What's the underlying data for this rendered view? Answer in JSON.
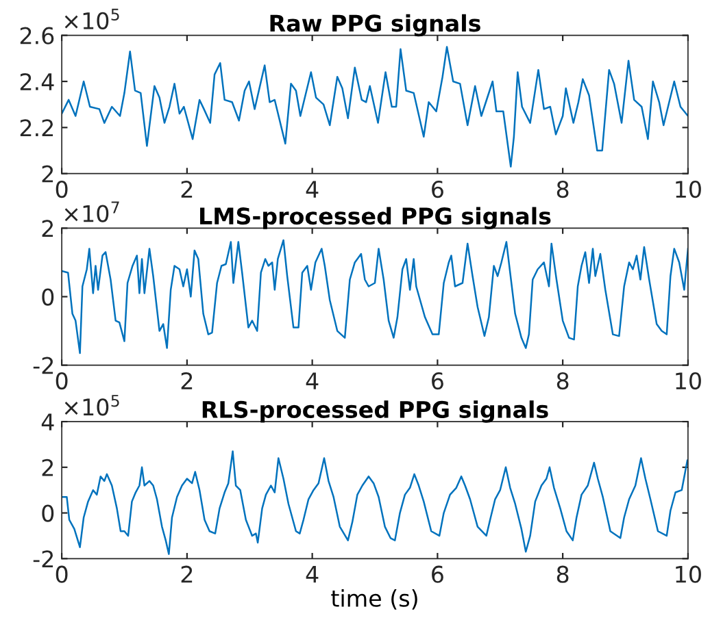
{
  "chart_data": [
    {
      "type": "line",
      "title": "Raw PPG signals",
      "annotations": [
        "×10$^{5}$"
      ],
      "xlim": [
        0,
        10
      ],
      "ylim": [
        2,
        2.6
      ],
      "xticks": [
        0,
        2,
        4,
        6,
        8,
        10
      ],
      "yticks": [
        2,
        2.2,
        2.4,
        2.6
      ],
      "grid": false,
      "legend": false,
      "series": [
        {
          "color": "#0072bd",
          "x": [
            0,
            0.11,
            0.22,
            0.35,
            0.45,
            0.6,
            0.68,
            0.8,
            0.93,
            1.0,
            1.09,
            1.17,
            1.26,
            1.36,
            1.48,
            1.56,
            1.64,
            1.72,
            1.8,
            1.88,
            1.95,
            2.09,
            2.2,
            2.27,
            2.37,
            2.44,
            2.53,
            2.6,
            2.72,
            2.83,
            2.92,
            2.99,
            3.08,
            3.24,
            3.32,
            3.4,
            3.57,
            3.66,
            3.74,
            3.81,
            3.98,
            4.06,
            4.18,
            4.28,
            4.4,
            4.48,
            4.57,
            4.68,
            4.79,
            4.86,
            4.92,
            5.05,
            5.17,
            5.27,
            5.34,
            5.41,
            5.5,
            5.62,
            5.78,
            5.86,
            5.98,
            6.08,
            6.15,
            6.25,
            6.36,
            6.48,
            6.6,
            6.7,
            6.88,
            6.94,
            7.05,
            7.17,
            7.22,
            7.28,
            7.35,
            7.48,
            7.61,
            7.7,
            7.8,
            7.89,
            8.0,
            8.05,
            8.17,
            8.25,
            8.32,
            8.42,
            8.55,
            8.63,
            8.74,
            8.82,
            8.94,
            9.05,
            9.14,
            9.26,
            9.36,
            9.44,
            9.54,
            9.61,
            9.78,
            9.88,
            10
          ],
          "values": [
            2.26,
            2.32,
            2.25,
            2.4,
            2.29,
            2.28,
            2.22,
            2.29,
            2.25,
            2.35,
            2.53,
            2.36,
            2.35,
            2.12,
            2.38,
            2.33,
            2.22,
            2.29,
            2.39,
            2.26,
            2.29,
            2.15,
            2.32,
            2.28,
            2.22,
            2.43,
            2.48,
            2.32,
            2.31,
            2.23,
            2.36,
            2.4,
            2.28,
            2.47,
            2.31,
            2.32,
            2.13,
            2.39,
            2.36,
            2.25,
            2.44,
            2.33,
            2.3,
            2.21,
            2.42,
            2.37,
            2.24,
            2.46,
            2.32,
            2.31,
            2.38,
            2.22,
            2.44,
            2.29,
            2.29,
            2.54,
            2.36,
            2.35,
            2.16,
            2.31,
            2.27,
            2.42,
            2.55,
            2.4,
            2.39,
            2.21,
            2.38,
            2.25,
            2.4,
            2.27,
            2.27,
            2.03,
            2.16,
            2.44,
            2.29,
            2.22,
            2.45,
            2.28,
            2.29,
            2.17,
            2.25,
            2.37,
            2.22,
            2.31,
            2.41,
            2.34,
            2.1,
            2.1,
            2.45,
            2.39,
            2.22,
            2.49,
            2.32,
            2.29,
            2.15,
            2.4,
            2.31,
            2.21,
            2.4,
            2.29,
            2.25
          ]
        }
      ]
    },
    {
      "type": "line",
      "title": "LMS-processed PPG signals",
      "annotations": [
        "×10$^{7}$"
      ],
      "xlim": [
        0,
        10
      ],
      "ylim": [
        -2,
        2
      ],
      "xticks": [
        0,
        2,
        4,
        6,
        8,
        10
      ],
      "yticks": [
        -2,
        0,
        2
      ],
      "grid": false,
      "legend": false,
      "series": [
        {
          "color": "#0072bd",
          "x": [
            0,
            0.1,
            0.17,
            0.22,
            0.29,
            0.33,
            0.4,
            0.44,
            0.5,
            0.54,
            0.58,
            0.65,
            0.7,
            0.78,
            0.86,
            0.92,
            1.0,
            1.05,
            1.13,
            1.2,
            1.24,
            1.28,
            1.32,
            1.4,
            1.46,
            1.56,
            1.62,
            1.68,
            1.74,
            1.8,
            1.88,
            1.94,
            2.0,
            2.06,
            2.12,
            2.18,
            2.26,
            2.34,
            2.4,
            2.48,
            2.55,
            2.62,
            2.7,
            2.74,
            2.82,
            2.88,
            2.98,
            3.04,
            3.12,
            3.18,
            3.25,
            3.3,
            3.36,
            3.4,
            3.45,
            3.54,
            3.6,
            3.7,
            3.78,
            3.84,
            3.92,
            3.98,
            4.05,
            4.15,
            4.2,
            4.28,
            4.4,
            4.52,
            4.6,
            4.68,
            4.78,
            4.84,
            4.9,
            5.0,
            5.06,
            5.14,
            5.22,
            5.3,
            5.36,
            5.44,
            5.5,
            5.56,
            5.62,
            5.66,
            5.8,
            5.92,
            6.02,
            6.1,
            6.18,
            6.22,
            6.28,
            6.4,
            6.48,
            6.56,
            6.64,
            6.75,
            6.82,
            6.9,
            6.96,
            7.02,
            7.1,
            7.16,
            7.24,
            7.34,
            7.41,
            7.46,
            7.52,
            7.6,
            7.7,
            7.78,
            7.82,
            7.9,
            8.0,
            8.1,
            8.18,
            8.24,
            8.3,
            8.36,
            8.42,
            8.48,
            8.52,
            8.6,
            8.68,
            8.8,
            8.9,
            8.98,
            9.06,
            9.12,
            9.18,
            9.24,
            9.3,
            9.38,
            9.5,
            9.58,
            9.66,
            9.72,
            9.78,
            9.86,
            9.94,
            10
          ],
          "values": [
            0.75,
            0.7,
            -0.5,
            -0.7,
            -1.65,
            0.3,
            0.8,
            1.4,
            0.1,
            0.9,
            0.2,
            1.2,
            1.3,
            0.5,
            -0.7,
            -0.75,
            -1.3,
            0.4,
            0.9,
            1.2,
            0.1,
            1.1,
            0.1,
            1.4,
            0.6,
            -1.0,
            -0.8,
            -1.5,
            0.2,
            0.9,
            0.8,
            0.3,
            0.8,
            0.0,
            1.35,
            1.1,
            -0.5,
            -1.1,
            -1.05,
            0.4,
            0.9,
            0.95,
            1.6,
            0.4,
            1.6,
            0.7,
            -0.9,
            -0.7,
            -1.0,
            0.7,
            1.1,
            0.9,
            1.0,
            0.2,
            1.1,
            1.65,
            0.6,
            -0.9,
            -0.9,
            0.7,
            0.9,
            0.2,
            1.0,
            1.4,
            0.9,
            -0.1,
            -1.0,
            -1.2,
            0.5,
            1.0,
            1.25,
            0.5,
            0.3,
            0.4,
            1.4,
            0.5,
            -0.7,
            -1.2,
            -0.6,
            0.8,
            1.1,
            0.2,
            1.1,
            0.3,
            -0.6,
            -1.1,
            -1.1,
            0.4,
            1.0,
            1.2,
            0.3,
            0.4,
            1.55,
            0.6,
            -0.3,
            -1.15,
            -0.6,
            0.9,
            0.6,
            1.0,
            1.6,
            0.7,
            -0.5,
            -1.2,
            -1.5,
            -1.1,
            0.5,
            0.8,
            1.0,
            0.3,
            1.55,
            0.5,
            -0.7,
            -1.2,
            -1.25,
            0.3,
            0.9,
            1.3,
            0.4,
            1.4,
            0.6,
            1.25,
            0.2,
            -1.1,
            -1.15,
            0.3,
            1.0,
            0.8,
            1.2,
            0.5,
            1.45,
            0.5,
            -0.8,
            -1.0,
            -1.1,
            0.6,
            1.4,
            1.0,
            0.2,
            1.4
          ]
        }
      ]
    },
    {
      "type": "line",
      "title": "RLS-processed PPG signals",
      "xlabel": "time (s)",
      "annotations": [
        "×10$^{5}$"
      ],
      "xlim": [
        0,
        10
      ],
      "ylim": [
        -2,
        4
      ],
      "xticks": [
        0,
        2,
        4,
        6,
        8,
        10
      ],
      "yticks": [
        -2,
        0,
        2,
        4
      ],
      "grid": false,
      "legend": false,
      "series": [
        {
          "color": "#0072bd",
          "x": [
            0,
            0.08,
            0.12,
            0.2,
            0.29,
            0.35,
            0.42,
            0.5,
            0.56,
            0.62,
            0.68,
            0.72,
            0.8,
            0.88,
            0.94,
            1.0,
            1.06,
            1.12,
            1.18,
            1.24,
            1.28,
            1.32,
            1.4,
            1.46,
            1.52,
            1.6,
            1.66,
            1.71,
            1.76,
            1.84,
            1.92,
            2.0,
            2.08,
            2.13,
            2.2,
            2.28,
            2.36,
            2.45,
            2.52,
            2.6,
            2.66,
            2.73,
            2.78,
            2.85,
            2.94,
            3.04,
            3.1,
            3.13,
            3.2,
            3.26,
            3.34,
            3.4,
            3.46,
            3.54,
            3.62,
            3.74,
            3.8,
            3.86,
            3.94,
            4.02,
            4.1,
            4.19,
            4.26,
            4.34,
            4.44,
            4.57,
            4.64,
            4.72,
            4.8,
            4.9,
            4.98,
            5.06,
            5.16,
            5.25,
            5.32,
            5.4,
            5.48,
            5.56,
            5.63,
            5.7,
            5.78,
            5.9,
            6.03,
            6.1,
            6.2,
            6.3,
            6.38,
            6.44,
            6.52,
            6.64,
            6.78,
            6.84,
            6.92,
            7.0,
            7.09,
            7.16,
            7.24,
            7.34,
            7.41,
            7.48,
            7.56,
            7.66,
            7.74,
            7.79,
            7.86,
            7.96,
            8.06,
            8.16,
            8.22,
            8.3,
            8.4,
            8.5,
            8.56,
            8.64,
            8.76,
            8.92,
            8.98,
            9.06,
            9.16,
            9.25,
            9.32,
            9.4,
            9.52,
            9.66,
            9.72,
            9.8,
            9.9,
            9.99
          ],
          "values": [
            0.7,
            0.7,
            -0.3,
            -0.7,
            -1.5,
            -0.2,
            0.5,
            1.0,
            0.8,
            1.6,
            1.4,
            1.7,
            1.2,
            0.2,
            -0.8,
            -0.8,
            -1.0,
            0.5,
            0.9,
            1.2,
            2.0,
            1.2,
            1.4,
            1.2,
            0.6,
            -0.6,
            -1.2,
            -1.8,
            -0.2,
            0.7,
            1.2,
            1.5,
            1.3,
            1.8,
            1.0,
            -0.3,
            -0.8,
            -0.9,
            0.2,
            0.9,
            1.3,
            2.7,
            1.2,
            1.0,
            -0.3,
            -1.0,
            -0.9,
            -1.3,
            0.2,
            0.8,
            1.2,
            0.9,
            2.4,
            1.5,
            0.4,
            -0.8,
            -0.9,
            -0.3,
            0.6,
            1.0,
            1.3,
            2.4,
            1.4,
            0.7,
            -0.6,
            -1.2,
            -0.4,
            0.8,
            1.2,
            1.6,
            1.3,
            0.7,
            -0.6,
            -1.1,
            -1.2,
            0.0,
            0.8,
            1.1,
            1.7,
            1.2,
            0.5,
            -0.8,
            -1.0,
            0.0,
            0.8,
            1.1,
            1.6,
            1.2,
            0.6,
            -0.6,
            -1.0,
            -0.3,
            0.6,
            1.0,
            2.0,
            1.1,
            0.4,
            -0.7,
            -1.7,
            -1.0,
            0.5,
            1.2,
            1.5,
            2.0,
            1.1,
            0.2,
            -0.8,
            -1.2,
            -0.2,
            0.8,
            1.2,
            2.2,
            1.5,
            0.7,
            -0.8,
            -1.1,
            -0.2,
            0.6,
            1.2,
            2.4,
            1.5,
            0.6,
            -0.8,
            -1.0,
            0.1,
            0.9,
            1.0,
            2.3
          ]
        }
      ]
    }
  ]
}
